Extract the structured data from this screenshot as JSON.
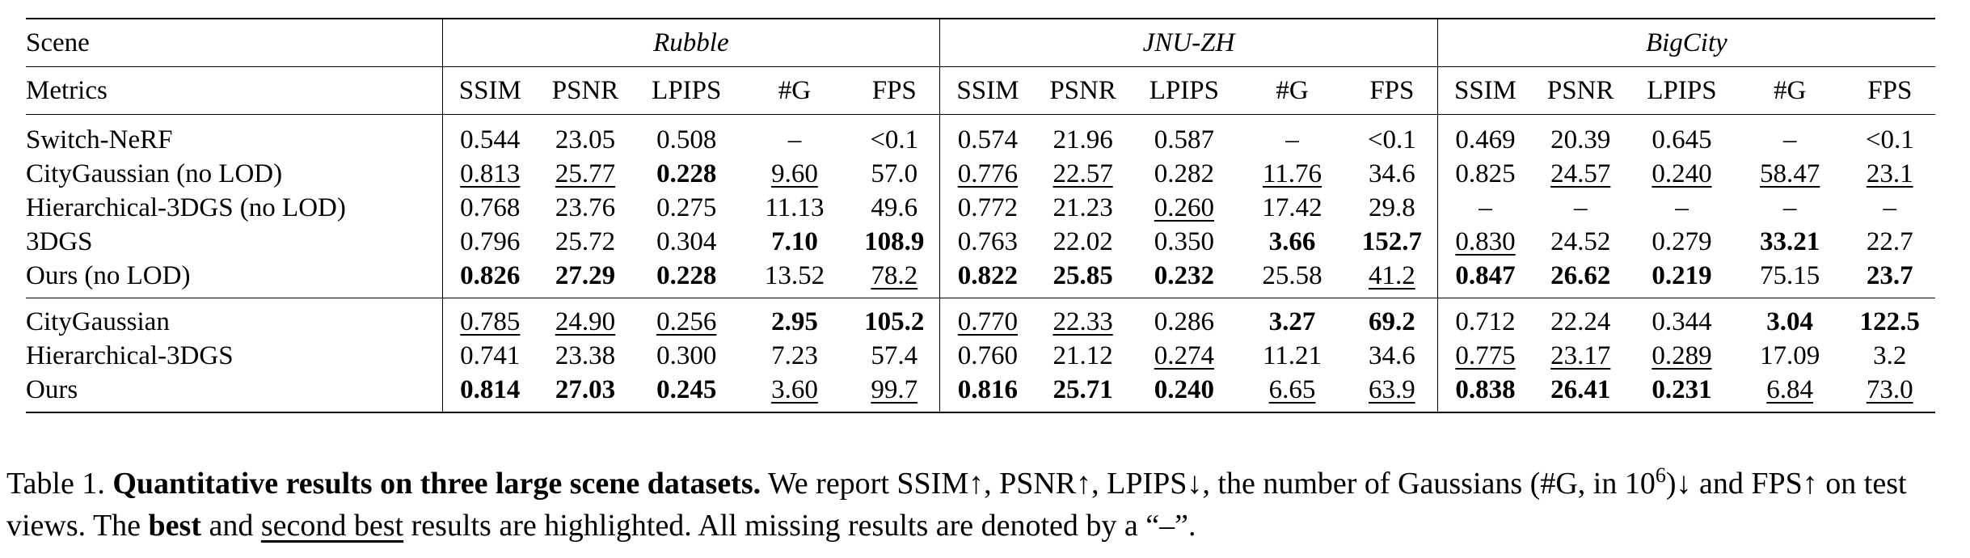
{
  "table": {
    "scene_label": "Scene",
    "metrics_label": "Metrics",
    "datasets": [
      "Rubble",
      "JNU-ZH",
      "BigCity"
    ],
    "metrics": [
      "SSIM",
      "PSNR",
      "LPIPS",
      "#G",
      "FPS"
    ],
    "sections": [
      {
        "rows": [
          {
            "name": "Switch-NeRF",
            "cells": [
              {
                "v": "0.544"
              },
              {
                "v": "23.05"
              },
              {
                "v": "0.508"
              },
              {
                "v": "–"
              },
              {
                "v": "<0.1"
              },
              {
                "v": "0.574"
              },
              {
                "v": "21.96"
              },
              {
                "v": "0.587"
              },
              {
                "v": "–"
              },
              {
                "v": "<0.1"
              },
              {
                "v": "0.469"
              },
              {
                "v": "20.39"
              },
              {
                "v": "0.645"
              },
              {
                "v": "–"
              },
              {
                "v": "<0.1"
              }
            ]
          },
          {
            "name": "CityGaussian (no LOD)",
            "cells": [
              {
                "v": "0.813",
                "s": "u"
              },
              {
                "v": "25.77",
                "s": "u"
              },
              {
                "v": "0.228",
                "s": "b"
              },
              {
                "v": "9.60",
                "s": "u"
              },
              {
                "v": "57.0"
              },
              {
                "v": "0.776",
                "s": "u"
              },
              {
                "v": "22.57",
                "s": "u"
              },
              {
                "v": "0.282"
              },
              {
                "v": "11.76",
                "s": "u"
              },
              {
                "v": "34.6"
              },
              {
                "v": "0.825"
              },
              {
                "v": "24.57",
                "s": "u"
              },
              {
                "v": "0.240",
                "s": "u"
              },
              {
                "v": "58.47",
                "s": "u"
              },
              {
                "v": "23.1",
                "s": "u"
              }
            ]
          },
          {
            "name": "Hierarchical-3DGS (no LOD)",
            "cells": [
              {
                "v": "0.768"
              },
              {
                "v": "23.76"
              },
              {
                "v": "0.275"
              },
              {
                "v": "11.13"
              },
              {
                "v": "49.6"
              },
              {
                "v": "0.772"
              },
              {
                "v": "21.23"
              },
              {
                "v": "0.260",
                "s": "u"
              },
              {
                "v": "17.42"
              },
              {
                "v": "29.8"
              },
              {
                "v": "–"
              },
              {
                "v": "–"
              },
              {
                "v": "–"
              },
              {
                "v": "–"
              },
              {
                "v": "–"
              }
            ]
          },
          {
            "name": "3DGS",
            "cells": [
              {
                "v": "0.796"
              },
              {
                "v": "25.72"
              },
              {
                "v": "0.304"
              },
              {
                "v": "7.10",
                "s": "b"
              },
              {
                "v": "108.9",
                "s": "b"
              },
              {
                "v": "0.763"
              },
              {
                "v": "22.02"
              },
              {
                "v": "0.350"
              },
              {
                "v": "3.66",
                "s": "b"
              },
              {
                "v": "152.7",
                "s": "b"
              },
              {
                "v": "0.830",
                "s": "u"
              },
              {
                "v": "24.52"
              },
              {
                "v": "0.279"
              },
              {
                "v": "33.21",
                "s": "b"
              },
              {
                "v": "22.7"
              }
            ]
          },
          {
            "name": "Ours (no LOD)",
            "cells": [
              {
                "v": "0.826",
                "s": "b"
              },
              {
                "v": "27.29",
                "s": "b"
              },
              {
                "v": "0.228",
                "s": "b"
              },
              {
                "v": "13.52"
              },
              {
                "v": "78.2",
                "s": "u"
              },
              {
                "v": "0.822",
                "s": "b"
              },
              {
                "v": "25.85",
                "s": "b"
              },
              {
                "v": "0.232",
                "s": "b"
              },
              {
                "v": "25.58"
              },
              {
                "v": "41.2",
                "s": "u"
              },
              {
                "v": "0.847",
                "s": "b"
              },
              {
                "v": "26.62",
                "s": "b"
              },
              {
                "v": "0.219",
                "s": "b"
              },
              {
                "v": "75.15"
              },
              {
                "v": "23.7",
                "s": "b"
              }
            ]
          }
        ]
      },
      {
        "rows": [
          {
            "name": "CityGaussian",
            "cells": [
              {
                "v": "0.785",
                "s": "u"
              },
              {
                "v": "24.90",
                "s": "u"
              },
              {
                "v": "0.256",
                "s": "u"
              },
              {
                "v": "2.95",
                "s": "b"
              },
              {
                "v": "105.2",
                "s": "b"
              },
              {
                "v": "0.770",
                "s": "u"
              },
              {
                "v": "22.33",
                "s": "u"
              },
              {
                "v": "0.286"
              },
              {
                "v": "3.27",
                "s": "b"
              },
              {
                "v": "69.2",
                "s": "b"
              },
              {
                "v": "0.712"
              },
              {
                "v": "22.24"
              },
              {
                "v": "0.344"
              },
              {
                "v": "3.04",
                "s": "b"
              },
              {
                "v": "122.5",
                "s": "b"
              }
            ]
          },
          {
            "name": "Hierarchical-3DGS",
            "cells": [
              {
                "v": "0.741"
              },
              {
                "v": "23.38"
              },
              {
                "v": "0.300"
              },
              {
                "v": "7.23"
              },
              {
                "v": "57.4"
              },
              {
                "v": "0.760"
              },
              {
                "v": "21.12"
              },
              {
                "v": "0.274",
                "s": "u"
              },
              {
                "v": "11.21"
              },
              {
                "v": "34.6"
              },
              {
                "v": "0.775",
                "s": "u"
              },
              {
                "v": "23.17",
                "s": "u"
              },
              {
                "v": "0.289",
                "s": "u"
              },
              {
                "v": "17.09"
              },
              {
                "v": "3.2"
              }
            ]
          },
          {
            "name": "Ours",
            "cells": [
              {
                "v": "0.814",
                "s": "b"
              },
              {
                "v": "27.03",
                "s": "b"
              },
              {
                "v": "0.245",
                "s": "b"
              },
              {
                "v": "3.60",
                "s": "u"
              },
              {
                "v": "99.7",
                "s": "u"
              },
              {
                "v": "0.816",
                "s": "b"
              },
              {
                "v": "25.71",
                "s": "b"
              },
              {
                "v": "0.240",
                "s": "b"
              },
              {
                "v": "6.65",
                "s": "u"
              },
              {
                "v": "63.9",
                "s": "u"
              },
              {
                "v": "0.838",
                "s": "b"
              },
              {
                "v": "26.41",
                "s": "b"
              },
              {
                "v": "0.231",
                "s": "b"
              },
              {
                "v": "6.84",
                "s": "u"
              },
              {
                "v": "73.0",
                "s": "u"
              }
            ]
          }
        ]
      }
    ]
  },
  "caption": {
    "label": "Table 1.",
    "title": "Quantitative results on three large scene datasets.",
    "text1": "We report SSIM↑, PSNR↑, LPIPS↓, the number of Gaussians (#G, in 10",
    "exponent": "6",
    "text2": ")↓ and FPS↑ on test views. The",
    "best": "best",
    "text3": "and",
    "second_best": "second best",
    "text4": "results are highlighted. All missing results are denoted by a “–”."
  }
}
